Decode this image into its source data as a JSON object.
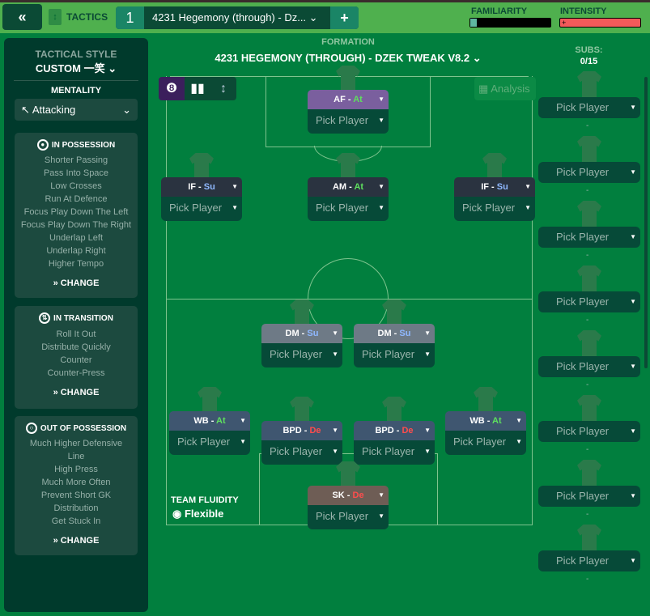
{
  "header": {
    "back_icon": "double-chevron-left",
    "tactics_label": "TACTICS",
    "slot_number": "1",
    "tactic_name": "4231 Hegemony (through) - Dz...",
    "add_label": "+",
    "familiarity_label": "FAMILIARITY",
    "intensity_label": "INTENSITY",
    "familiarity_level": 0.02,
    "intensity_level": 0.98,
    "intensity_color": "#f25a5a"
  },
  "sidebar": {
    "style_label": "TACTICAL STYLE",
    "style_value": "CUSTOM 一笑",
    "mentality_label": "MENTALITY",
    "mentality_value": "Attacking",
    "in_possession": {
      "title": "IN POSSESSION",
      "items": [
        "Shorter Passing",
        "Pass Into Space",
        "Low Crosses",
        "Run At Defence",
        "Focus Play Down The Left",
        "Focus Play Down The Right",
        "Underlap Left",
        "Underlap Right",
        "Higher Tempo"
      ],
      "change": "CHANGE"
    },
    "in_transition": {
      "title": "IN TRANSITION",
      "items": [
        "Roll It Out",
        "Distribute Quickly",
        "Counter",
        "Counter-Press"
      ],
      "change": "CHANGE"
    },
    "out_possession": {
      "title": "OUT OF POSSESSION",
      "items": [
        "Much Higher Defensive",
        "Line",
        "High Press",
        "Much More Often",
        "Prevent Short GK",
        "Distribution",
        "Get Stuck In"
      ],
      "change": "CHANGE"
    }
  },
  "formation": {
    "label": "FORMATION",
    "name": "4231 HEGEMONY (THROUGH) - DZEK TWEAK V8.2",
    "analysis": "Analysis",
    "fluidity_label": "TEAM FLUIDITY",
    "fluidity_value": "Flexible",
    "positions": [
      {
        "role": "AF",
        "duty": "At",
        "pick": "Pick Player"
      },
      {
        "role": "IF",
        "duty": "Su",
        "pick": "Pick Player"
      },
      {
        "role": "AM",
        "duty": "At",
        "pick": "Pick Player"
      },
      {
        "role": "IF",
        "duty": "Su",
        "pick": "Pick Player"
      },
      {
        "role": "DM",
        "duty": "Su",
        "pick": "Pick Player"
      },
      {
        "role": "DM",
        "duty": "Su",
        "pick": "Pick Player"
      },
      {
        "role": "WB",
        "duty": "At",
        "pick": "Pick Player"
      },
      {
        "role": "BPD",
        "duty": "De",
        "pick": "Pick Player"
      },
      {
        "role": "BPD",
        "duty": "De",
        "pick": "Pick Player"
      },
      {
        "role": "WB",
        "duty": "At",
        "pick": "Pick Player"
      },
      {
        "role": "SK",
        "duty": "De",
        "pick": "Pick Player"
      }
    ],
    "duty_colors": {
      "At": "#5ee05e",
      "Su": "#8fb8ff",
      "De": "#ff4d4d"
    }
  },
  "subs": {
    "label": "SUBS:",
    "count": "0/15",
    "items": [
      "Pick Player",
      "Pick Player",
      "Pick Player",
      "Pick Player",
      "Pick Player",
      "Pick Player",
      "Pick Player",
      "Pick Player"
    ],
    "dash": "-"
  }
}
